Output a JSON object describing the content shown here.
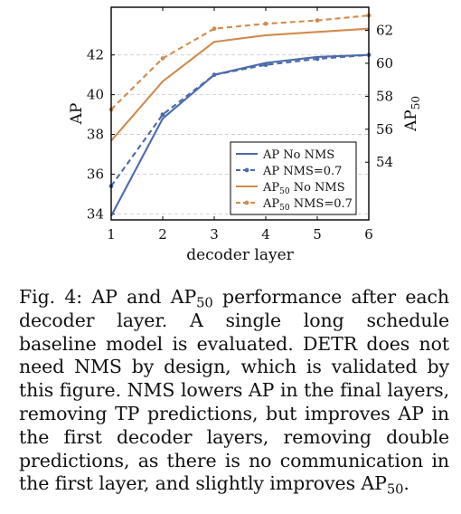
{
  "chart_data": {
    "type": "line",
    "x": [
      1,
      2,
      3,
      4,
      5,
      6
    ],
    "xlabel": "decoder layer",
    "xlim": [
      1,
      6
    ],
    "left_axis": {
      "label": "AP",
      "ticks": [
        34,
        36,
        38,
        40,
        42
      ],
      "lim": [
        33.7,
        44.4
      ]
    },
    "right_axis": {
      "label_base": "AP",
      "label_sub": "50",
      "ticks": [
        54,
        56,
        58,
        60,
        62
      ],
      "lim": [
        50.5,
        63.4
      ]
    },
    "grid": "horizontal dashed",
    "legend_position": "lower-right",
    "series": [
      {
        "name": "AP No NMS",
        "name_base": "AP",
        "name_sub": "",
        "name_rest": " No NMS",
        "axis": "left",
        "color": "#4c6aab",
        "dash": "solid",
        "marker": "none",
        "values": [
          33.9,
          38.8,
          41.0,
          41.6,
          41.9,
          42.0
        ]
      },
      {
        "name": "AP NMS=0.7",
        "name_base": "AP",
        "name_sub": "",
        "name_rest": " NMS=0.7",
        "axis": "left",
        "color": "#4c6aab",
        "dash": "dashed",
        "marker": "circle",
        "values": [
          35.4,
          39.0,
          41.0,
          41.5,
          41.8,
          42.0
        ]
      },
      {
        "name": "AP50 No NMS",
        "name_base": "AP",
        "name_sub": "50",
        "name_rest": " No NMS",
        "axis": "right",
        "color": "#d18b4d",
        "dash": "solid",
        "marker": "none",
        "values": [
          55.3,
          58.9,
          61.3,
          61.7,
          61.9,
          62.1
        ]
      },
      {
        "name": "AP50 NMS=0.7",
        "name_base": "AP",
        "name_sub": "50",
        "name_rest": " NMS=0.7",
        "axis": "right",
        "color": "#d18b4d",
        "dash": "dashed",
        "marker": "circle",
        "values": [
          57.2,
          60.3,
          62.1,
          62.4,
          62.6,
          62.9
        ]
      }
    ]
  },
  "caption": {
    "label_prefix": "Fig. 4: AP and AP",
    "label_sub": "50",
    "text": " performance after each decoder layer. A single long schedule baseline model is evaluated. DETR does not need NMS by design, which is validated by this figure. NMS lowers AP in the final layers, removing TP predictions, but improves AP in the first decoder layers, removing double predictions, as there is no communication in the first layer, and slightly improves AP",
    "end_sub": "50",
    "end": "."
  }
}
